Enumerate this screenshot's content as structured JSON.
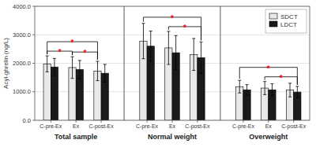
{
  "chart_data": {
    "type": "bar",
    "ylabel": "Acyl-ghrelin (ng/L)",
    "groups": [
      "Total sample",
      "Normal weight",
      "Overweight"
    ],
    "categories": [
      "C-pre-Ex",
      "Ex",
      "C-post-Ex",
      "C-pre-Ex",
      "Ex",
      "C-post-Ex",
      "C-pre-Ex",
      "Ex",
      "C-post-Ex"
    ],
    "series": [
      {
        "name": "SDCT",
        "color": "#e8e8e8",
        "values": [
          1980,
          1850,
          1730,
          2780,
          2540,
          2310,
          1180,
          1130,
          1060
        ],
        "errors": [
          280,
          380,
          340,
          620,
          580,
          560,
          220,
          230,
          240
        ]
      },
      {
        "name": "LDCT",
        "color": "#1a1a1a",
        "values": [
          1870,
          1780,
          1650,
          2600,
          2370,
          2200,
          1070,
          1070,
          990
        ],
        "errors": [
          300,
          320,
          310,
          530,
          600,
          550,
          180,
          210,
          200
        ]
      }
    ],
    "ylim": [
      0,
      4000
    ],
    "yticks": [
      {
        "value": 0,
        "label": "0.0"
      },
      {
        "value": 1000,
        "label": "1000.0"
      },
      {
        "value": 2000,
        "label": "2000.0"
      },
      {
        "value": 3000,
        "label": "3000.0"
      },
      {
        "value": 4000,
        "label": "4000.0"
      }
    ],
    "grid": true,
    "legend": "upper right",
    "annotations": [
      {
        "text": "*",
        "color": "red",
        "from": {
          "series": 0,
          "index": 0
        },
        "to": {
          "series": 0,
          "index": 1
        }
      },
      {
        "text": "*",
        "color": "red",
        "from": {
          "series": 0,
          "index": 1
        },
        "to": {
          "series": 0,
          "index": 2
        }
      },
      {
        "text": "*",
        "color": "red",
        "from": {
          "series": 0,
          "index": 0
        },
        "to": {
          "series": 0,
          "index": 2
        }
      },
      {
        "text": "*",
        "color": "red",
        "from": {
          "series": 0,
          "index": 3
        },
        "to": {
          "series": 1,
          "index": 5
        }
      },
      {
        "text": "*",
        "color": "red",
        "from": {
          "series": 0,
          "index": 4
        },
        "to": {
          "series": 1,
          "index": 5
        }
      },
      {
        "text": "*",
        "color": "red",
        "from": {
          "series": 0,
          "index": 6
        },
        "to": {
          "series": 1,
          "index": 8
        }
      },
      {
        "text": "*",
        "color": "red",
        "from": {
          "series": 0,
          "index": 7
        },
        "to": {
          "series": 1,
          "index": 8
        }
      }
    ]
  }
}
